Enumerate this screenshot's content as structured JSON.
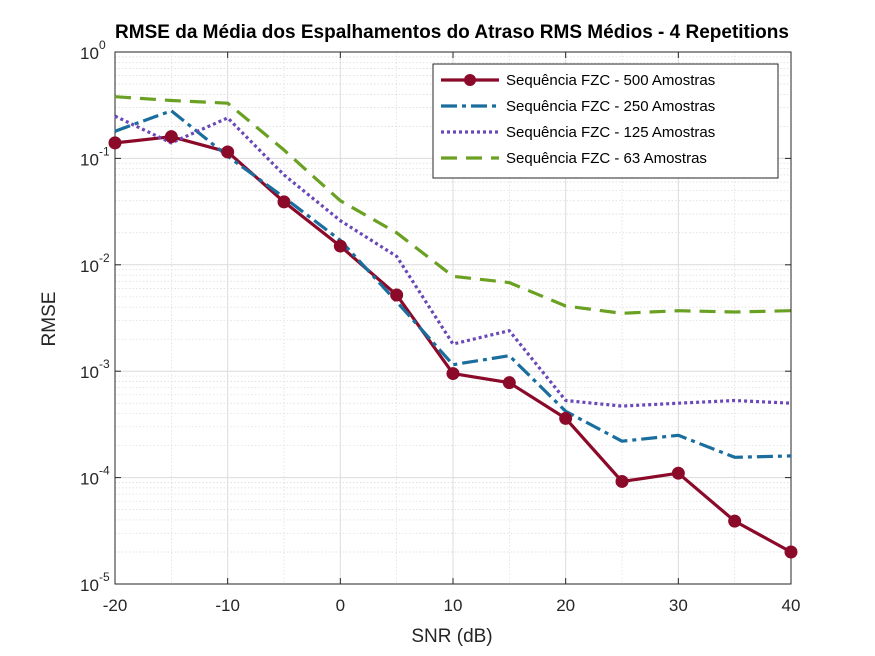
{
  "chart_data": {
    "type": "line",
    "title": "RMSE da Média dos Espalhamentos do Atraso RMS Médios - 4 Repetitions",
    "xlabel": "SNR (dB)",
    "ylabel": "RMSE",
    "xlim": [
      -20,
      40
    ],
    "ylim": [
      1e-05,
      1
    ],
    "yscale": "log",
    "grid": true,
    "minor_grid": true,
    "legend_position": "top-right",
    "x_ticks": [
      "-20",
      "-10",
      "0",
      "10",
      "20",
      "30",
      "40"
    ],
    "y_ticks": [
      {
        "base": "10",
        "exp": "-5"
      },
      {
        "base": "10",
        "exp": "-4"
      },
      {
        "base": "10",
        "exp": "-3"
      },
      {
        "base": "10",
        "exp": "-2"
      },
      {
        "base": "10",
        "exp": "-1"
      },
      {
        "base": "10",
        "exp": "0"
      }
    ],
    "x": [
      -20,
      -15,
      -10,
      -5,
      0,
      5,
      10,
      15,
      20,
      25,
      30,
      35,
      40
    ],
    "series": [
      {
        "name": "Sequência FZC - 500 Amostras",
        "color": "#8b0a2a",
        "style": "solid-marker",
        "values": [
          0.14,
          0.16,
          0.115,
          0.039,
          0.015,
          0.0052,
          0.00095,
          0.00078,
          0.00036,
          9.2e-05,
          0.00011,
          3.9e-05,
          2e-05
        ]
      },
      {
        "name": "Sequência FZC - 250 Amostras",
        "color": "#1a6e9e",
        "style": "dashdot",
        "values": [
          0.18,
          0.28,
          0.105,
          0.043,
          0.017,
          0.0045,
          0.00115,
          0.0014,
          0.00042,
          0.00022,
          0.00025,
          0.000155,
          0.00016
        ]
      },
      {
        "name": "Sequência FZC - 125 Amostras",
        "color": "#6a48b8",
        "style": "dotted",
        "values": [
          0.25,
          0.14,
          0.24,
          0.07,
          0.026,
          0.012,
          0.0018,
          0.0024,
          0.00053,
          0.00047,
          0.0005,
          0.00053,
          0.0005
        ]
      },
      {
        "name": "Sequência FZC - 63 Amostras",
        "color": "#6aa122",
        "style": "dashed",
        "values": [
          0.38,
          0.35,
          0.33,
          0.12,
          0.04,
          0.02,
          0.0078,
          0.0068,
          0.0041,
          0.0035,
          0.0037,
          0.0036,
          0.0037
        ]
      }
    ]
  }
}
